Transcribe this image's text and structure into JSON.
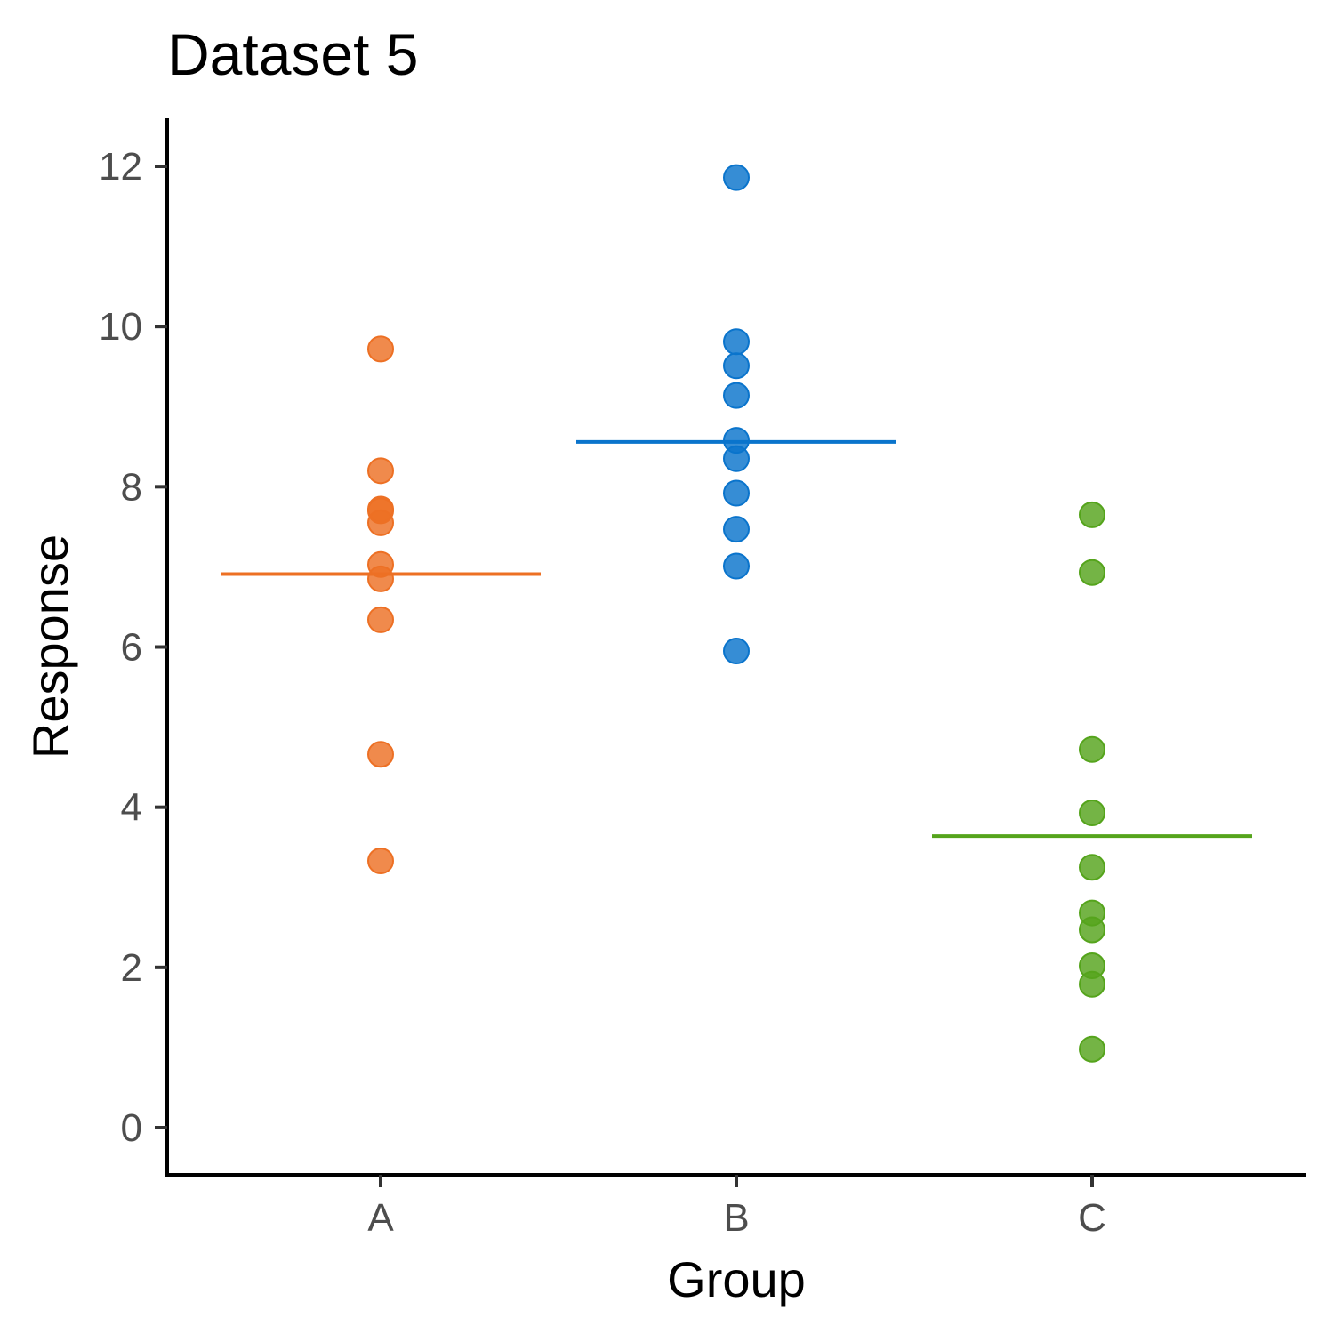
{
  "chart_data": {
    "type": "scatter",
    "title": "Dataset 5",
    "xlabel": "Group",
    "ylabel": "Response",
    "categories": [
      "A",
      "B",
      "C"
    ],
    "ylim": [
      -0.6,
      12.6
    ],
    "yticks": [
      0,
      2,
      4,
      6,
      8,
      10,
      12
    ],
    "grid": false,
    "legend": "none",
    "series": [
      {
        "category": "A",
        "color": "#ed7024",
        "values": [
          9.72,
          8.2,
          7.72,
          7.7,
          7.55,
          7.03,
          6.85,
          6.34,
          4.66,
          3.33
        ],
        "mean": 6.91
      },
      {
        "category": "B",
        "color": "#0a74cc",
        "values": [
          11.86,
          9.81,
          9.51,
          9.14,
          8.58,
          8.35,
          7.92,
          7.47,
          7.01,
          5.95
        ],
        "mean": 8.56
      },
      {
        "category": "C",
        "color": "#55a41c",
        "values": [
          7.65,
          6.93,
          4.72,
          3.93,
          3.25,
          2.68,
          2.47,
          2.02,
          1.79,
          0.98
        ],
        "mean": 3.64
      }
    ]
  }
}
